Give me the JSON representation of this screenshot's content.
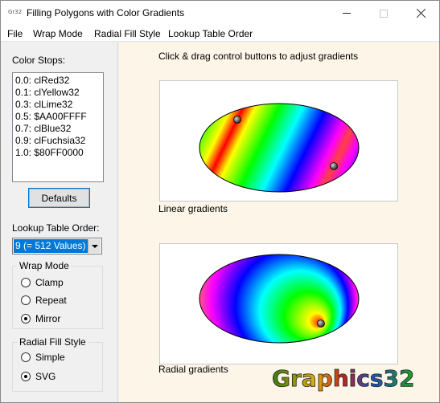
{
  "window": {
    "icon_text": "Gr32",
    "title": "Filling Polygons with Color Gradients"
  },
  "menu": [
    "File",
    "Wrap Mode",
    "Radial Fill Style",
    "Lookup Table Order"
  ],
  "color_stops": {
    "label": "Color Stops:",
    "items": [
      "0.0: clRed32",
      "0.1: clYellow32",
      "0.3: clLime32",
      "0.5: $AA00FFFF",
      "0.7: clBlue32",
      "0.9: clFuchsia32",
      "1.0: $80FF0000"
    ]
  },
  "defaults_button": "Defaults",
  "lookup_table": {
    "label": "Lookup Table Order:",
    "value": "9 (= 512 Values)"
  },
  "wrap_mode": {
    "title": "Wrap Mode",
    "options": [
      "Clamp",
      "Repeat",
      "Mirror"
    ],
    "selected": "Mirror"
  },
  "radial_fill_style": {
    "title": "Radial Fill Style",
    "options": [
      "Simple",
      "SVG"
    ],
    "selected": "SVG"
  },
  "hint": "Click & drag control buttons to adjust gradients",
  "linear": {
    "caption": "Linear gradients"
  },
  "radial": {
    "caption": "Radial gradients"
  },
  "logo_text": "Graphics32",
  "colors": {
    "selection": "#0078d7",
    "panel_bg": "#fdf6e8",
    "window_bg": "#f0f0f0"
  }
}
